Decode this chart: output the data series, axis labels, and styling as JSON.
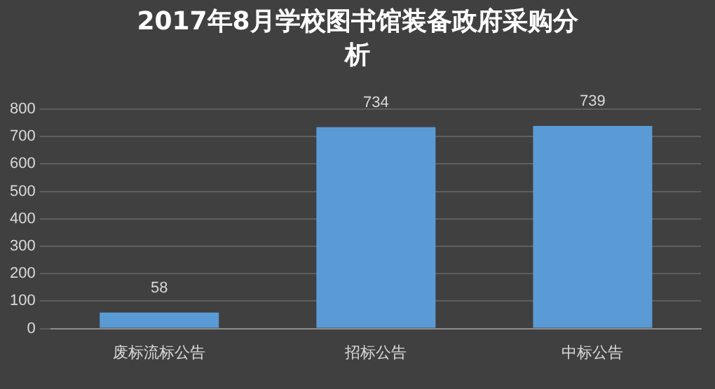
{
  "chart_data": {
    "type": "bar",
    "title": "2017年8月学校图书馆装备政府采购分析",
    "categories": [
      "废标流标公告",
      "招标公告",
      "中标公告"
    ],
    "values": [
      58,
      734,
      739
    ],
    "color": "#5b9bd5",
    "ylim": [
      0,
      800
    ],
    "yticks": [
      0,
      100,
      200,
      300,
      400,
      500,
      600,
      700,
      800
    ],
    "grid": "y",
    "data_labels": true,
    "legend": false
  }
}
